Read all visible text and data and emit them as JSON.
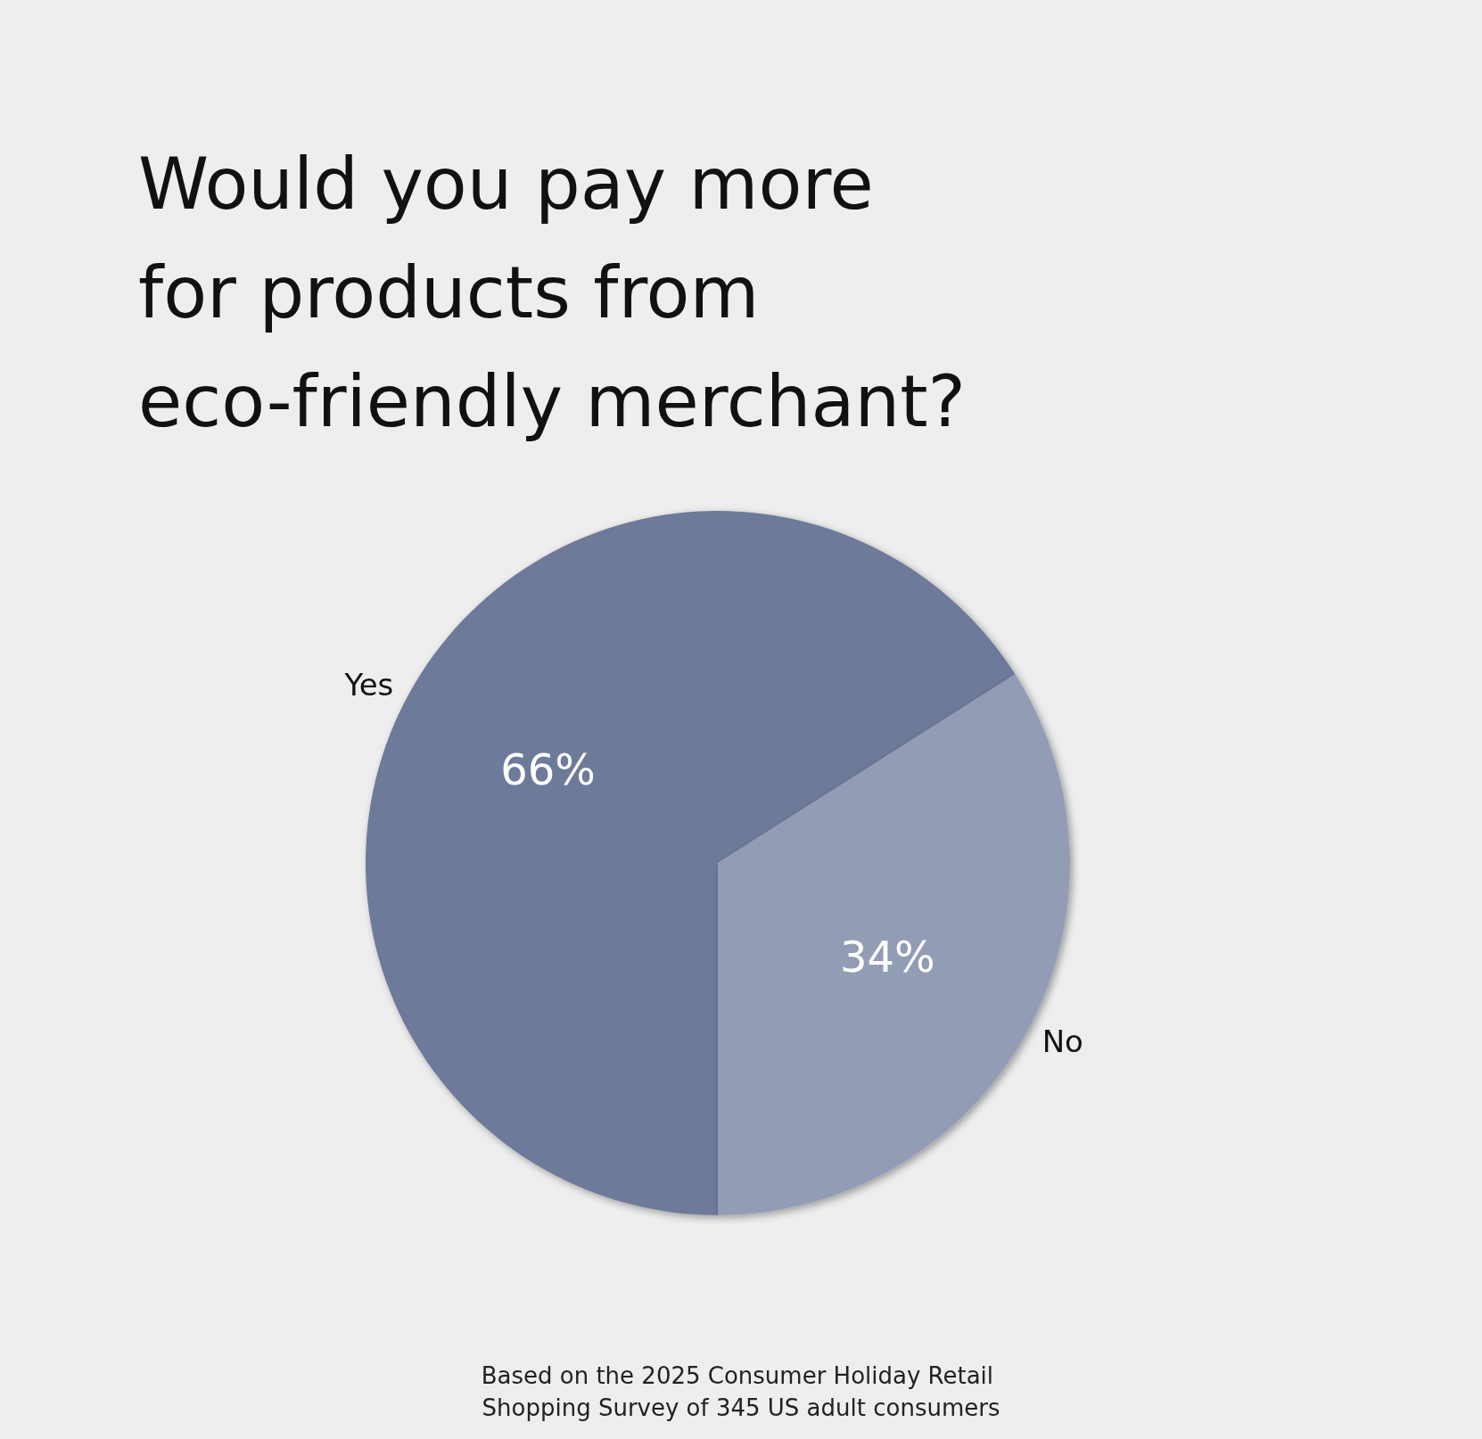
{
  "chart_data": {
    "type": "pie",
    "title": "Would you pay more for products from eco-friendly merchant?",
    "categories": [
      "Yes",
      "No"
    ],
    "values": [
      66,
      34
    ],
    "colors": [
      "#6e7a99",
      "#939cb5"
    ],
    "value_labels": [
      "66%",
      "34%"
    ],
    "legend": false,
    "annotations": [
      "Based on the 2025 Consumer Holiday Retail Shopping Survey of 345 US adult consumers"
    ]
  }
}
